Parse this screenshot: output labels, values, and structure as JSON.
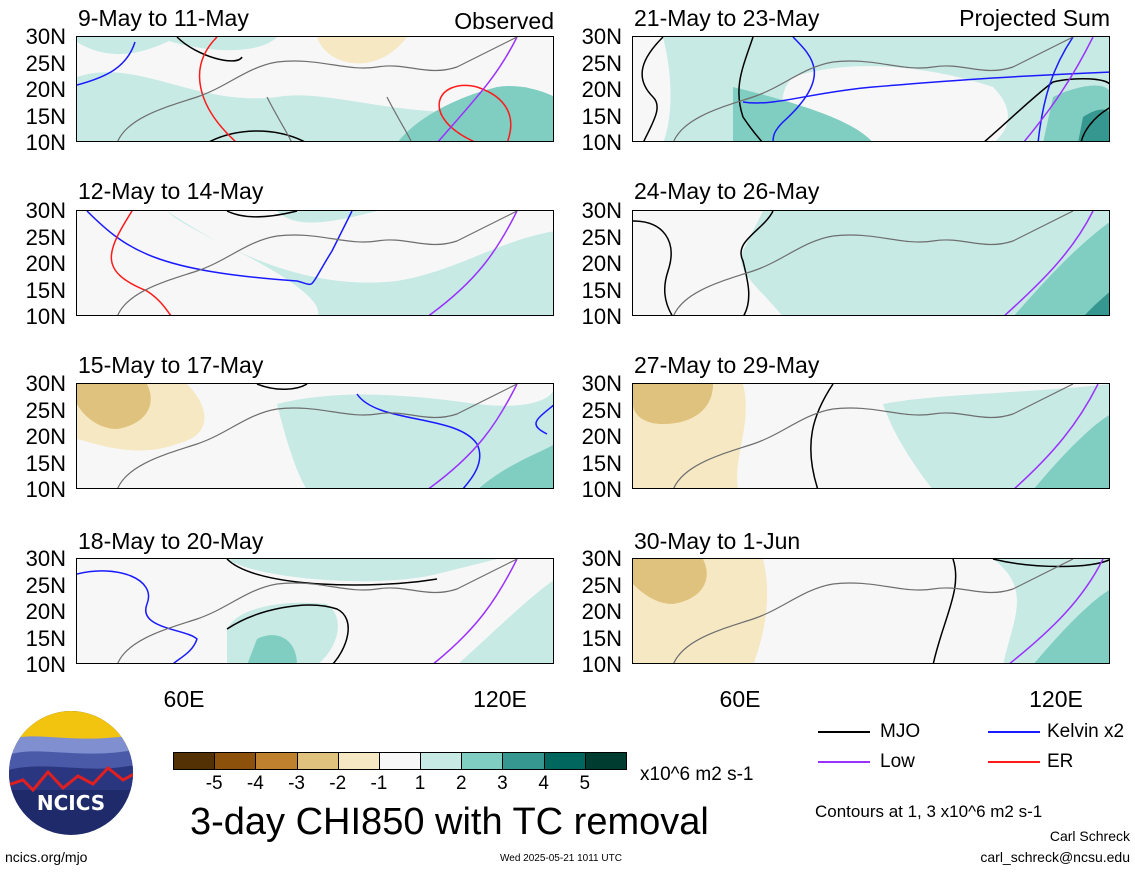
{
  "header": {
    "left_label": "Observed",
    "right_label": "Projected Sum"
  },
  "panels_left": [
    {
      "title": "9-May to 11-May"
    },
    {
      "title": "12-May to 14-May"
    },
    {
      "title": "15-May to 17-May"
    },
    {
      "title": "18-May to 20-May"
    }
  ],
  "panels_right": [
    {
      "title": "21-May to 23-May"
    },
    {
      "title": "24-May to 26-May"
    },
    {
      "title": "27-May to 29-May"
    },
    {
      "title": "30-May to 1-Jun"
    }
  ],
  "lat_labels": [
    "30N",
    "25N",
    "20N",
    "15N",
    "10N"
  ],
  "lon_labels": [
    "60E",
    "120E"
  ],
  "legend": {
    "mjo": "MJO",
    "kelvin": "Kelvin x2",
    "low": "Low",
    "er": "ER",
    "colors": {
      "mjo": "#000000",
      "kelvin": "#1a1aff",
      "low": "#9b30ff",
      "er": "#ff1a1a"
    }
  },
  "colorbar": {
    "labels": [
      "-5",
      "-4",
      "-3",
      "-2",
      "-1",
      "1",
      "2",
      "3",
      "4",
      "5"
    ],
    "colors": [
      "#543005",
      "#8c510a",
      "#bf812d",
      "#dfc27d",
      "#f6e8c3",
      "#f7f7f7",
      "#c7eae5",
      "#80cdc1",
      "#35978f",
      "#01665e",
      "#003c30"
    ],
    "units": "x10^6 m2 s-1"
  },
  "main_title": "3-day CHI850 with TC removal",
  "contours_note": "Contours at 1, 3 x10^6 m2 s-1",
  "author": "Carl Schreck",
  "email": "carl_schreck@ncsu.edu",
  "site": "ncics.org/mjo",
  "timestamp": "Wed 2025-05-21 1011 UTC",
  "logo_text": "NCICS"
}
